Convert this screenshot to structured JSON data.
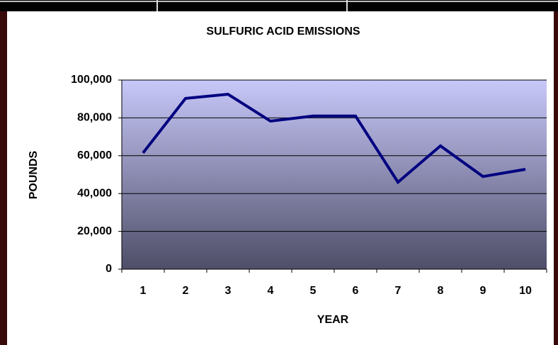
{
  "chart_data": {
    "type": "line",
    "title": "SULFURIC ACID EMISSIONS",
    "x_label": "YEAR",
    "y_label": "POUNDS",
    "categories": [
      "1",
      "2",
      "3",
      "4",
      "5",
      "6",
      "7",
      "8",
      "9",
      "10"
    ],
    "series": [
      {
        "name": "Sulfuric acid",
        "color": "#000080",
        "values": [
          61500,
          90300,
          92500,
          78300,
          81000,
          81000,
          46000,
          65200,
          49000,
          52800
        ]
      }
    ],
    "ylim": [
      0,
      100000
    ],
    "yticks": [
      0,
      {
        "value": 20000,
        "label": "20,000"
      },
      {
        "value": 40000,
        "label": "40,000"
      },
      {
        "value": 60000,
        "label": "60,000"
      },
      {
        "value": 80000,
        "label": "80,000"
      },
      {
        "value": 100000,
        "label": "100,000"
      }
    ],
    "grid": true
  }
}
